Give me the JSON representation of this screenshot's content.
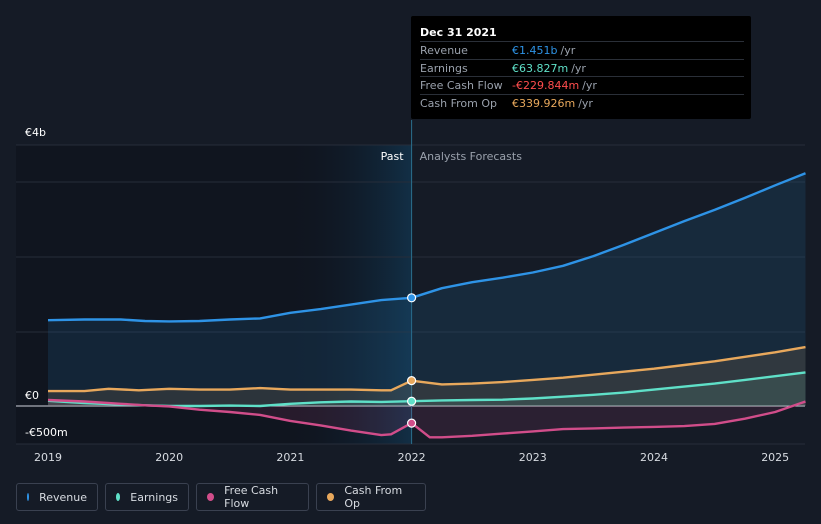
{
  "chart_data": {
    "type": "area",
    "y_axis": {
      "top_label": "€4b",
      "zero_label": "€0",
      "bottom_label": "-€500m",
      "ylim_millions": [
        -500,
        4000
      ]
    },
    "x_axis": {
      "ticks": [
        "2019",
        "2020",
        "2021",
        "2022",
        "2023",
        "2024",
        "2025"
      ],
      "range_years": [
        2018.7,
        2025.25
      ]
    },
    "divider": {
      "year": 2022.0,
      "past_label": "Past",
      "forecast_label": "Analysts Forecasts"
    },
    "series": [
      {
        "name": "Revenue",
        "color": "#2e93e6",
        "points": [
          [
            2019.0,
            1150
          ],
          [
            2019.3,
            1160
          ],
          [
            2019.6,
            1160
          ],
          [
            2019.8,
            1140
          ],
          [
            2020.0,
            1135
          ],
          [
            2020.25,
            1140
          ],
          [
            2020.5,
            1160
          ],
          [
            2020.75,
            1175
          ],
          [
            2021.0,
            1250
          ],
          [
            2021.25,
            1300
          ],
          [
            2021.5,
            1360
          ],
          [
            2021.75,
            1420
          ],
          [
            2022.0,
            1451
          ],
          [
            2022.25,
            1580
          ],
          [
            2022.5,
            1660
          ],
          [
            2022.75,
            1720
          ],
          [
            2023.0,
            1790
          ],
          [
            2023.25,
            1880
          ],
          [
            2023.5,
            2010
          ],
          [
            2023.75,
            2160
          ],
          [
            2024.0,
            2320
          ],
          [
            2024.25,
            2480
          ],
          [
            2024.5,
            2630
          ],
          [
            2024.75,
            2790
          ],
          [
            2025.0,
            2960
          ],
          [
            2025.25,
            3120
          ]
        ]
      },
      {
        "name": "Earnings",
        "color": "#5fe0c8",
        "points": [
          [
            2019.0,
            70
          ],
          [
            2019.3,
            40
          ],
          [
            2019.6,
            20
          ],
          [
            2019.8,
            10
          ],
          [
            2020.0,
            0
          ],
          [
            2020.25,
            0
          ],
          [
            2020.5,
            5
          ],
          [
            2020.75,
            0
          ],
          [
            2021.0,
            30
          ],
          [
            2021.25,
            50
          ],
          [
            2021.5,
            60
          ],
          [
            2021.75,
            55
          ],
          [
            2022.0,
            63.827
          ],
          [
            2022.25,
            75
          ],
          [
            2022.5,
            80
          ],
          [
            2022.75,
            85
          ],
          [
            2023.0,
            100
          ],
          [
            2023.25,
            125
          ],
          [
            2023.5,
            150
          ],
          [
            2023.75,
            180
          ],
          [
            2024.0,
            220
          ],
          [
            2024.25,
            260
          ],
          [
            2024.5,
            300
          ],
          [
            2024.75,
            350
          ],
          [
            2025.0,
            400
          ],
          [
            2025.25,
            450
          ]
        ]
      },
      {
        "name": "Free Cash Flow",
        "color": "#d14d8a",
        "points": [
          [
            2019.0,
            80
          ],
          [
            2019.3,
            60
          ],
          [
            2019.6,
            30
          ],
          [
            2019.8,
            10
          ],
          [
            2020.0,
            -5
          ],
          [
            2020.25,
            -50
          ],
          [
            2020.5,
            -80
          ],
          [
            2020.75,
            -120
          ],
          [
            2021.0,
            -200
          ],
          [
            2021.25,
            -260
          ],
          [
            2021.5,
            -330
          ],
          [
            2021.75,
            -390
          ],
          [
            2021.83,
            -380
          ],
          [
            2022.0,
            -229.844
          ],
          [
            2022.15,
            -420
          ],
          [
            2022.25,
            -420
          ],
          [
            2022.5,
            -400
          ],
          [
            2022.75,
            -370
          ],
          [
            2023.0,
            -340
          ],
          [
            2023.25,
            -310
          ],
          [
            2023.5,
            -300
          ],
          [
            2023.75,
            -290
          ],
          [
            2024.0,
            -280
          ],
          [
            2024.25,
            -270
          ],
          [
            2024.5,
            -240
          ],
          [
            2024.75,
            -170
          ],
          [
            2025.0,
            -80
          ],
          [
            2025.25,
            60
          ]
        ]
      },
      {
        "name": "Cash From Op",
        "color": "#e8a85c",
        "points": [
          [
            2019.0,
            200
          ],
          [
            2019.3,
            200
          ],
          [
            2019.5,
            230
          ],
          [
            2019.75,
            210
          ],
          [
            2020.0,
            230
          ],
          [
            2020.25,
            220
          ],
          [
            2020.5,
            220
          ],
          [
            2020.75,
            240
          ],
          [
            2021.0,
            220
          ],
          [
            2021.25,
            220
          ],
          [
            2021.5,
            220
          ],
          [
            2021.75,
            210
          ],
          [
            2021.83,
            210
          ],
          [
            2022.0,
            339.926
          ],
          [
            2022.25,
            290
          ],
          [
            2022.5,
            300
          ],
          [
            2022.75,
            320
          ],
          [
            2023.0,
            350
          ],
          [
            2023.25,
            380
          ],
          [
            2023.5,
            420
          ],
          [
            2023.75,
            460
          ],
          [
            2024.0,
            500
          ],
          [
            2024.25,
            550
          ],
          [
            2024.5,
            600
          ],
          [
            2024.75,
            660
          ],
          [
            2025.0,
            720
          ],
          [
            2025.25,
            790
          ]
        ]
      }
    ]
  },
  "tooltip": {
    "date": "Dec 31 2021",
    "rows": [
      {
        "label": "Revenue",
        "value": "€1.451b",
        "unit": "/yr",
        "color": "#2e93e6"
      },
      {
        "label": "Earnings",
        "value": "€63.827m",
        "unit": "/yr",
        "color": "#5fe0c8"
      },
      {
        "label": "Free Cash Flow",
        "value": "-€229.844m",
        "unit": "/yr",
        "color": "#ff4d4d"
      },
      {
        "label": "Cash From Op",
        "value": "€339.926m",
        "unit": "/yr",
        "color": "#e8a85c"
      }
    ]
  },
  "legend": [
    {
      "label": "Revenue",
      "color": "#2e93e6"
    },
    {
      "label": "Earnings",
      "color": "#5fe0c8"
    },
    {
      "label": "Free Cash Flow",
      "color": "#d14d8a"
    },
    {
      "label": "Cash From Op",
      "color": "#e8a85c"
    }
  ]
}
